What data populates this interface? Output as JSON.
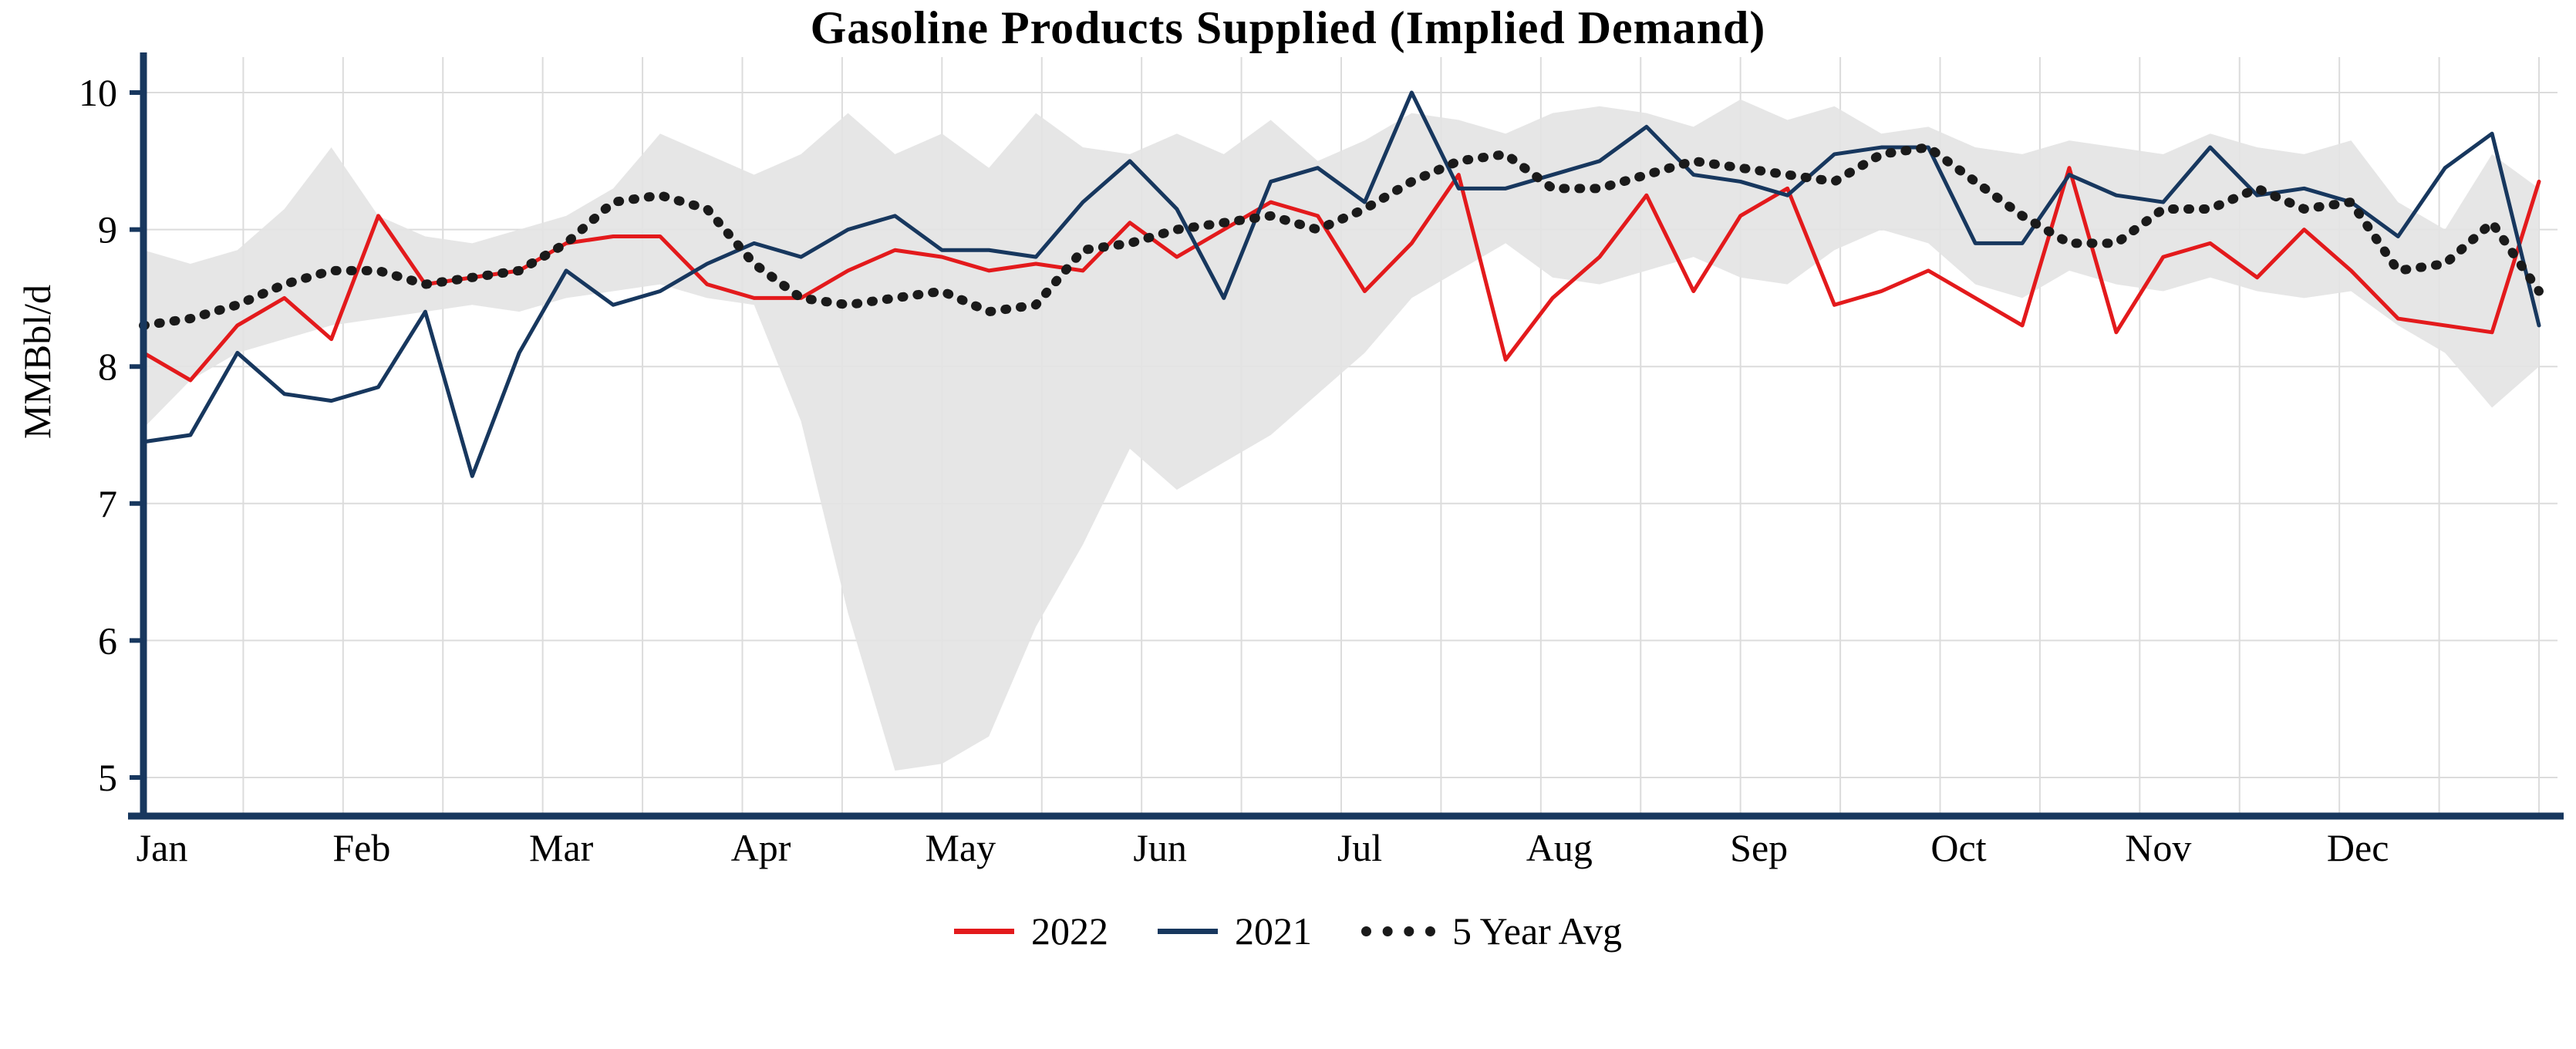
{
  "chart_data": {
    "type": "line",
    "title": "Gasoline Products Supplied (Implied Demand)",
    "ylabel": "MMBbl/d",
    "ylim": [
      5,
      10
    ],
    "yticks": [
      5,
      6,
      7,
      8,
      9,
      10
    ],
    "grid": true,
    "legend_position": "bottom",
    "months": [
      "Jan",
      "Feb",
      "Mar",
      "Apr",
      "May",
      "Jun",
      "Jul",
      "Aug",
      "Sep",
      "Oct",
      "Nov",
      "Dec"
    ],
    "series": [
      {
        "name": "2022",
        "color": "#e31a1c",
        "style": "solid",
        "values": [
          8.1,
          7.9,
          8.3,
          8.5,
          8.2,
          9.1,
          8.6,
          8.65,
          8.7,
          8.9,
          8.95,
          8.95,
          8.6,
          8.5,
          8.5,
          8.7,
          8.85,
          8.8,
          8.7,
          8.75,
          8.7,
          9.05,
          8.8,
          9.0,
          9.2,
          9.1,
          8.55,
          8.9,
          9.4,
          8.05,
          8.5,
          8.8,
          9.25,
          8.55,
          9.1,
          9.3,
          8.45,
          8.55,
          8.7,
          8.5,
          8.3,
          9.45,
          8.25,
          8.8,
          8.9,
          8.65,
          9.0,
          8.7,
          8.35,
          8.3,
          8.25,
          9.35
        ]
      },
      {
        "name": "2021",
        "color": "#17375e",
        "style": "solid",
        "values": [
          7.45,
          7.5,
          8.1,
          7.8,
          7.75,
          7.85,
          8.4,
          7.2,
          8.1,
          8.7,
          8.45,
          8.55,
          8.75,
          8.9,
          8.8,
          9.0,
          9.1,
          8.85,
          8.85,
          8.8,
          9.2,
          9.5,
          9.15,
          8.5,
          9.35,
          9.45,
          9.2,
          10.0,
          9.3,
          9.3,
          9.4,
          9.5,
          9.75,
          9.4,
          9.35,
          9.25,
          9.55,
          9.6,
          9.6,
          8.9,
          8.9,
          9.4,
          9.25,
          9.2,
          9.6,
          9.25,
          9.3,
          9.2,
          8.95,
          9.45,
          9.7,
          8.3
        ]
      },
      {
        "name": "5 Year Avg",
        "color": "#1a1a1a",
        "style": "dotted",
        "values": [
          8.3,
          8.35,
          8.45,
          8.6,
          8.7,
          8.7,
          8.6,
          8.65,
          8.7,
          8.9,
          9.2,
          9.25,
          9.15,
          8.75,
          8.5,
          8.45,
          8.5,
          8.55,
          8.4,
          8.45,
          8.85,
          8.9,
          9.0,
          9.05,
          9.1,
          9.0,
          9.15,
          9.35,
          9.5,
          9.55,
          9.3,
          9.3,
          9.4,
          9.5,
          9.45,
          9.4,
          9.35,
          9.55,
          9.6,
          9.35,
          9.1,
          8.9,
          8.9,
          9.15,
          9.15,
          9.3,
          9.15,
          9.2,
          8.7,
          8.75,
          9.05,
          8.55
        ]
      }
    ],
    "band": {
      "name": "5-year-range",
      "color": "#e3e3e3",
      "upper": [
        8.85,
        8.75,
        8.85,
        9.15,
        9.6,
        9.1,
        8.95,
        8.9,
        9.0,
        9.1,
        9.3,
        9.7,
        9.55,
        9.4,
        9.55,
        9.85,
        9.55,
        9.7,
        9.45,
        9.85,
        9.6,
        9.55,
        9.7,
        9.55,
        9.8,
        9.5,
        9.65,
        9.85,
        9.8,
        9.7,
        9.85,
        9.9,
        9.85,
        9.75,
        9.95,
        9.8,
        9.9,
        9.7,
        9.75,
        9.6,
        9.55,
        9.65,
        9.6,
        9.55,
        9.7,
        9.6,
        9.55,
        9.65,
        9.2,
        9.0,
        9.55,
        9.3
      ],
      "lower": [
        7.55,
        7.9,
        8.1,
        8.2,
        8.3,
        8.35,
        8.4,
        8.45,
        8.4,
        8.5,
        8.55,
        8.6,
        8.5,
        8.45,
        7.6,
        6.2,
        5.05,
        5.1,
        5.3,
        6.1,
        6.7,
        7.4,
        7.1,
        7.3,
        7.5,
        7.8,
        8.1,
        8.5,
        8.7,
        8.9,
        8.65,
        8.6,
        8.7,
        8.8,
        8.65,
        8.6,
        8.85,
        9.0,
        8.9,
        8.6,
        8.5,
        8.7,
        8.6,
        8.55,
        8.65,
        8.55,
        8.5,
        8.55,
        8.3,
        8.1,
        7.7,
        8.0
      ]
    },
    "axis_color": "#17375e",
    "grid_color": "#dcdcdc"
  }
}
